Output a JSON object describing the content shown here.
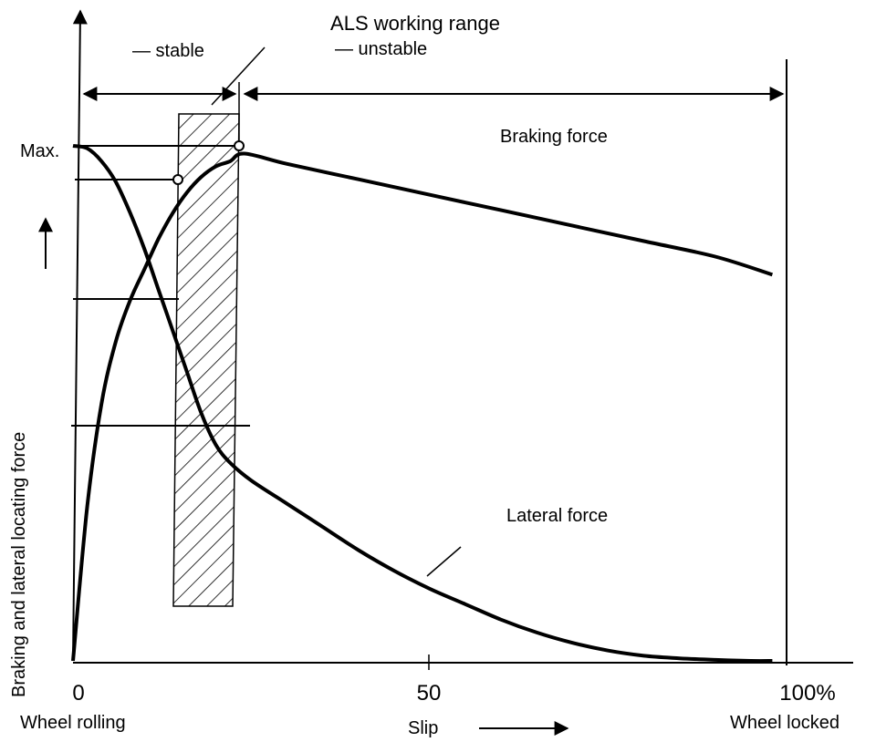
{
  "title": "ALS working range",
  "legend": {
    "stable": "— stable",
    "unstable": "— unstable"
  },
  "y_axis": {
    "label": "Braking and lateral locating force",
    "max_label": "Max."
  },
  "x_axis": {
    "label": "Slip",
    "ticks": [
      {
        "value": "0",
        "caption": "Wheel rolling"
      },
      {
        "value": "50",
        "caption": ""
      },
      {
        "value": "100%",
        "caption": "Wheel locked"
      }
    ]
  },
  "curves": {
    "braking": "Braking force",
    "lateral": "Lateral force"
  },
  "chart_data": {
    "type": "line",
    "xlabel": "Slip",
    "ylabel": "Braking and lateral locating force",
    "xlim": [
      0,
      100
    ],
    "series": [
      {
        "name": "Braking force",
        "x": [
          0,
          2,
          4,
          6,
          8,
          10,
          12,
          14,
          16,
          18,
          20,
          22,
          24,
          30,
          40,
          50,
          60,
          70,
          80,
          90,
          98
        ],
        "y": [
          0,
          0.3,
          0.5,
          0.62,
          0.7,
          0.76,
          0.82,
          0.87,
          0.91,
          0.94,
          0.96,
          0.97,
          0.985,
          0.965,
          0.935,
          0.905,
          0.875,
          0.845,
          0.815,
          0.785,
          0.75
        ]
      },
      {
        "name": "Lateral force",
        "x": [
          0,
          2,
          4,
          6,
          8,
          10,
          12,
          14,
          16,
          18,
          20,
          22,
          25,
          30,
          35,
          40,
          45,
          50,
          55,
          60,
          65,
          70,
          75,
          80,
          85,
          90,
          95,
          98
        ],
        "y": [
          1.0,
          0.995,
          0.97,
          0.93,
          0.87,
          0.8,
          0.72,
          0.64,
          0.56,
          0.48,
          0.42,
          0.385,
          0.35,
          0.305,
          0.26,
          0.215,
          0.175,
          0.14,
          0.11,
          0.08,
          0.055,
          0.035,
          0.02,
          0.01,
          0.005,
          0.002,
          0.0,
          0.0
        ]
      }
    ],
    "working_range": {
      "stable_x": [
        0,
        24
      ],
      "unstable_x": [
        24,
        100
      ],
      "hatched_band_x": [
        14,
        22
      ]
    }
  }
}
